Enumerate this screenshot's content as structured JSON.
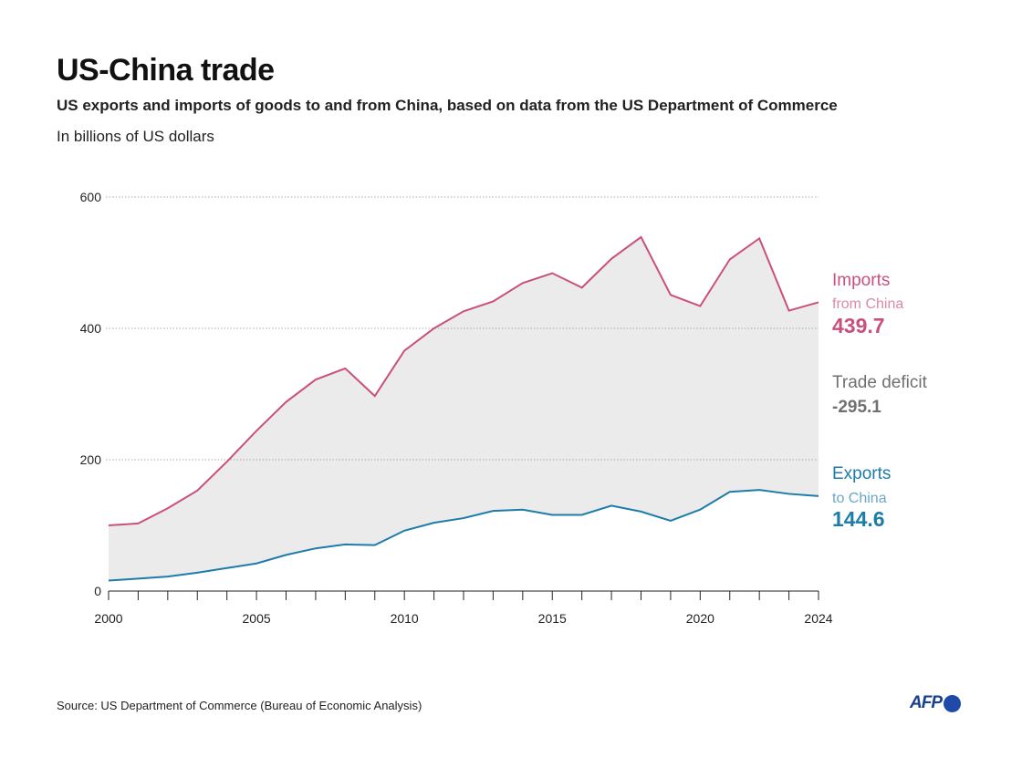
{
  "title": "US-China trade",
  "subtitle": "US exports and imports of goods to and from China, based on data from the US Department of Commerce",
  "unit": "In billions of US dollars",
  "source": "Source: US Department of Commerce (Bureau of Economic Analysis)",
  "logo": "AFP",
  "colors": {
    "imports": "#c9507e",
    "exports": "#1d7ca8",
    "deficit": "#707070",
    "fill": "#ebebeb"
  },
  "labels": {
    "imports": {
      "title": "Imports",
      "sub": "from China",
      "value": "439.7"
    },
    "deficit": {
      "title": "Trade deficit",
      "value": "-295.1"
    },
    "exports": {
      "title": "Exports",
      "sub": "to China",
      "value": "144.6"
    }
  },
  "chart_data": {
    "type": "line",
    "title": "US-China trade",
    "ylabel": "In billions of US dollars",
    "ylim": [
      0,
      600
    ],
    "xlim": [
      2000,
      2024
    ],
    "yticks": [
      0,
      200,
      400,
      600
    ],
    "xticks": [
      2000,
      2005,
      2010,
      2015,
      2020,
      2024
    ],
    "grid": true,
    "legend": "right, direct labels",
    "x": [
      2000,
      2001,
      2002,
      2003,
      2004,
      2005,
      2006,
      2007,
      2008,
      2009,
      2010,
      2011,
      2012,
      2013,
      2014,
      2015,
      2016,
      2017,
      2018,
      2019,
      2020,
      2021,
      2022,
      2023,
      2024
    ],
    "series": [
      {
        "name": "Imports from China",
        "values": [
          100,
          103,
          126,
          153,
          197,
          244,
          288,
          322,
          339,
          297,
          366,
          400,
          426,
          441,
          469,
          484,
          462,
          506,
          539,
          451,
          434,
          505,
          537,
          427,
          439.7
        ]
      },
      {
        "name": "Exports to China",
        "values": [
          16,
          19,
          22,
          28,
          35,
          42,
          55,
          65,
          71,
          70,
          92,
          104,
          111,
          122,
          124,
          116,
          116,
          130,
          121,
          107,
          124,
          151,
          154,
          148,
          144.6
        ]
      }
    ],
    "shaded_area": "Trade deficit between series"
  }
}
